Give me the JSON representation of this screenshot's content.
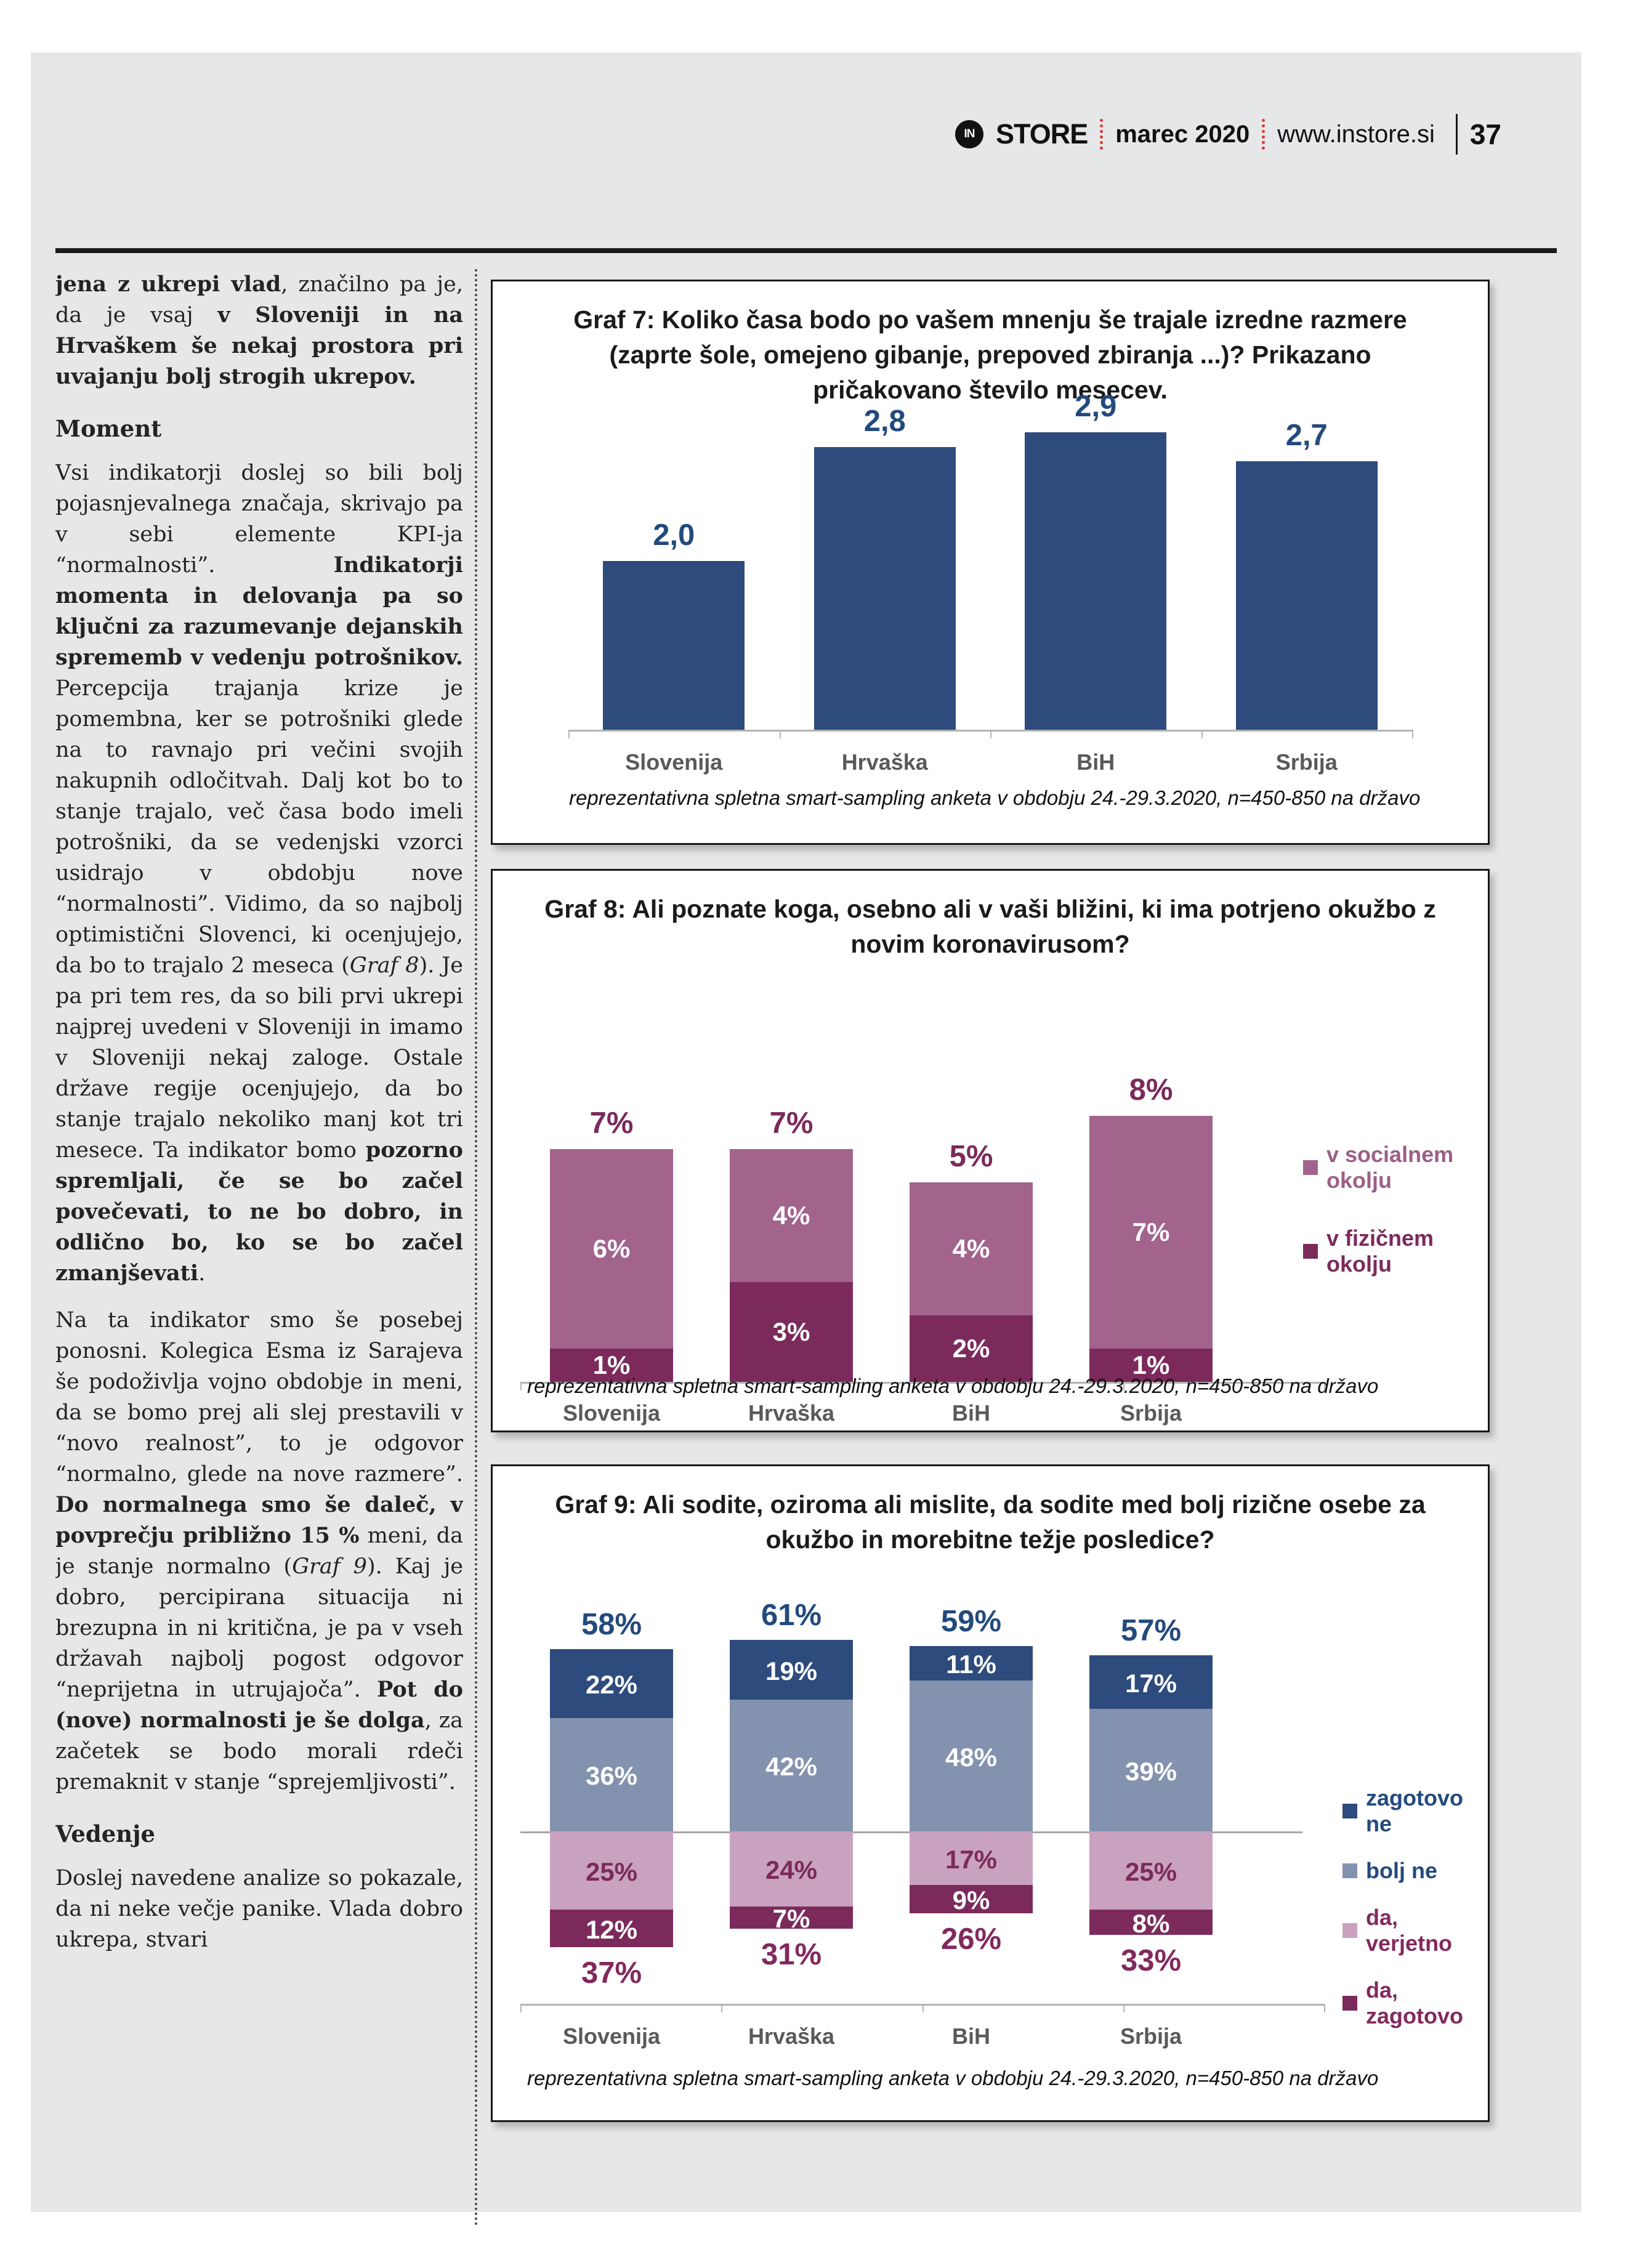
{
  "header": {
    "logo_text": "IN",
    "brand": "STORE",
    "issue": "marec 2020",
    "website": "www.instore.si",
    "page_number": "37"
  },
  "colors": {
    "page_background": "#e6e7e9",
    "navy": "#2d4b7c",
    "navy_text": "#234a7d",
    "gray_blue": "#8392ae",
    "light_purple": "#a2638c",
    "dark_magenta": "#7b2a5b",
    "pink": "#c9a2bf",
    "category_gray": "#595959",
    "header_red": "#d93a35"
  },
  "article": {
    "blocks": [
      {
        "type": "p",
        "runs": [
          {
            "t": "jena z ukrepi vlad",
            "b": 1
          },
          {
            "t": ", značilno pa je, da je vsaj "
          },
          {
            "t": "v Sloveniji in na Hrvaškem še nekaj prostora pri uvajanju bolj strogih ukrepov.",
            "b": 1
          }
        ]
      },
      {
        "type": "h",
        "text": "Moment"
      },
      {
        "type": "p",
        "runs": [
          {
            "t": "Vsi indikatorji doslej so bili bolj pojasnjevalnega značaja, skrivajo pa v sebi elemente KPI-ja “normalnosti”. "
          },
          {
            "t": "Indikatorji momenta in delovanja pa so ključni za razumevanje dejanskih sprememb v vedenju potrošnikov.",
            "b": 1
          },
          {
            "t": " Percepcija trajanja krize je pomembna, ker se potrošniki glede na to ravnajo pri večini svojih nakupnih odločitvah. Dalj kot bo to stanje trajalo, več časa bodo imeli potrošniki, da se vedenjski vzorci usidrajo v obdobju nove “normalnosti”. Vidimo, da so najbolj optimistični Slovenci, ki ocenjujejo, da bo to trajalo 2 meseca ("
          },
          {
            "t": "Graf 8",
            "i": 1
          },
          {
            "t": "). Je pa pri tem res, da so bili prvi ukrepi najprej uvedeni v Sloveniji in imamo v Sloveniji nekaj zaloge. Ostale države regije ocenjujejo, da bo stanje trajalo nekoliko manj kot tri mesece. Ta indikator bomo "
          },
          {
            "t": "pozorno spremljali, če se bo začel povečevati, to ne bo dobro, in odlično bo, ko se bo začel zmanjševati",
            "b": 1
          },
          {
            "t": "."
          }
        ]
      },
      {
        "type": "p",
        "runs": [
          {
            "t": "Na ta indikator smo še posebej ponosni. Kolegica Esma iz Sarajeva še podoživlja vojno obdobje in meni, da se bomo prej ali slej prestavili v “novo realnost”, to je odgovor “normalno, glede na nove razmere”. "
          },
          {
            "t": "Do normalnega smo še daleč, v povprečju približno 15 %",
            "b": 1
          },
          {
            "t": " meni, da je stanje normalno ("
          },
          {
            "t": "Graf 9",
            "i": 1
          },
          {
            "t": "). Kaj je dobro, percipirana situacija ni brezupna in ni kritična, je pa v vseh državah najbolj pogost odgovor “neprijetna in utrujajoča”. "
          },
          {
            "t": "Pot do (nove) normalnosti je še dolga",
            "b": 1
          },
          {
            "t": ", za začetek se bodo morali rdeči premaknit v stanje “sprejemljivosti”."
          }
        ]
      },
      {
        "type": "h",
        "text": "Vedenje"
      },
      {
        "type": "p",
        "runs": [
          {
            "t": "Doslej navedene analize so pokazale, da ni neke večje panike. Vlada dobro ukrepa, stvari"
          }
        ]
      }
    ]
  },
  "chart_data": [
    {
      "id": "graf7",
      "type": "bar",
      "title": "Graf 7: Koliko časa bodo po vašem mnenju še trajale izredne razmere (zaprte šole, omejeno gibanje, prepoved zbiranja ...)? Prikazano pričakovano število mesecev.",
      "categories": [
        "Slovenija",
        "Hrvaška",
        "BiH",
        "Srbija"
      ],
      "values": [
        2.0,
        2.8,
        2.9,
        2.7
      ],
      "value_labels": [
        "2,0",
        "2,8",
        "2,9",
        "2,7"
      ],
      "ylabel": "pričakovano število mesecev",
      "ylim": [
        0.8,
        3.1
      ],
      "grid": false,
      "bar_color": "#2d4b7c",
      "label_color": "#234a7d",
      "footnote": "reprezentativna spletna smart-sampling anketa v obdobju 24.-29.3.2020, n=450-850 na državo"
    },
    {
      "id": "graf8",
      "type": "stacked-bar",
      "title": "Graf 8: Ali poznate koga, osebno ali v vaši bližini, ki ima potrjeno okužbo z novim koronavirusom?",
      "categories": [
        "Slovenija",
        "Hrvaška",
        "BiH",
        "Srbija"
      ],
      "series": [
        {
          "name": "v fizičnem okolju",
          "color": "#7b2a5b",
          "values": [
            1,
            3,
            2,
            1
          ],
          "labels": [
            "1%",
            "3%",
            "2%",
            "1%"
          ]
        },
        {
          "name": "v socialnem okolju",
          "color": "#a2638c",
          "values": [
            6,
            4,
            4,
            7
          ],
          "labels": [
            "6%",
            "4%",
            "4%",
            "7%"
          ]
        }
      ],
      "totals": [
        7,
        7,
        5,
        8
      ],
      "total_labels": [
        "7%",
        "7%",
        "5%",
        "8%"
      ],
      "total_label_color": "#7b2a5b",
      "legend_position": "right",
      "legend": [
        {
          "name": "v socialnem okolju",
          "color": "#a2638c",
          "text_color": "#9c5f86"
        },
        {
          "name": "v fizičnem okolju",
          "color": "#7b2a5b",
          "text_color": "#7b2a5b"
        }
      ],
      "footnote": "reprezentativna spletna smart-sampling anketa v obdobju 24.-29.3.2020, n=450-850 na državo"
    },
    {
      "id": "graf9",
      "type": "diverging-stacked-bar",
      "title": "Graf 9: Ali sodite, oziroma ali mislite, da sodite med bolj rizične osebe za okužbo in morebitne težje posledice?",
      "categories": [
        "Slovenija",
        "Hrvaška",
        "BiH",
        "Srbija"
      ],
      "up_series": [
        {
          "name": "bolj ne",
          "color": "#8392ae",
          "values": [
            36,
            42,
            48,
            39
          ],
          "labels": [
            "36%",
            "42%",
            "48%",
            "39%"
          ],
          "label_color": "#ffffff"
        },
        {
          "name": "zagotovo ne",
          "color": "#2d4b7c",
          "values": [
            22,
            19,
            11,
            17
          ],
          "labels": [
            "22%",
            "19%",
            "11%",
            "17%"
          ],
          "label_color": "#ffffff"
        }
      ],
      "down_series": [
        {
          "name": "da, verjetno",
          "color": "#c9a2bf",
          "values": [
            25,
            24,
            17,
            25
          ],
          "labels": [
            "25%",
            "24%",
            "17%",
            "25%"
          ],
          "label_color": "#7b2a5b"
        },
        {
          "name": "da, zagotovo",
          "color": "#7b2a5b",
          "values": [
            12,
            7,
            9,
            8
          ],
          "labels": [
            "12%",
            "7%",
            "9%",
            "8%"
          ],
          "label_color": "#ffffff"
        }
      ],
      "top_totals": [
        "58%",
        "61%",
        "59%",
        "57%"
      ],
      "top_total_color": "#234a7d",
      "bottom_totals": [
        "37%",
        "31%",
        "26%",
        "33%"
      ],
      "bottom_total_color": "#82295d",
      "legend_position": "right",
      "legend": [
        {
          "name": "zagotovo ne",
          "color": "#2d4b7c",
          "text_color": "#234a7d"
        },
        {
          "name": "bolj ne",
          "color": "#8392ae",
          "text_color": "#234a7d"
        },
        {
          "name": "da, verjetno",
          "color": "#c9a2bf",
          "text_color": "#82295d"
        },
        {
          "name": "da, zagotovo",
          "color": "#7b2a5b",
          "text_color": "#82295d"
        }
      ],
      "footnote": "reprezentativna spletna smart-sampling anketa v obdobju 24.-29.3.2020, n=450-850 na državo"
    }
  ]
}
